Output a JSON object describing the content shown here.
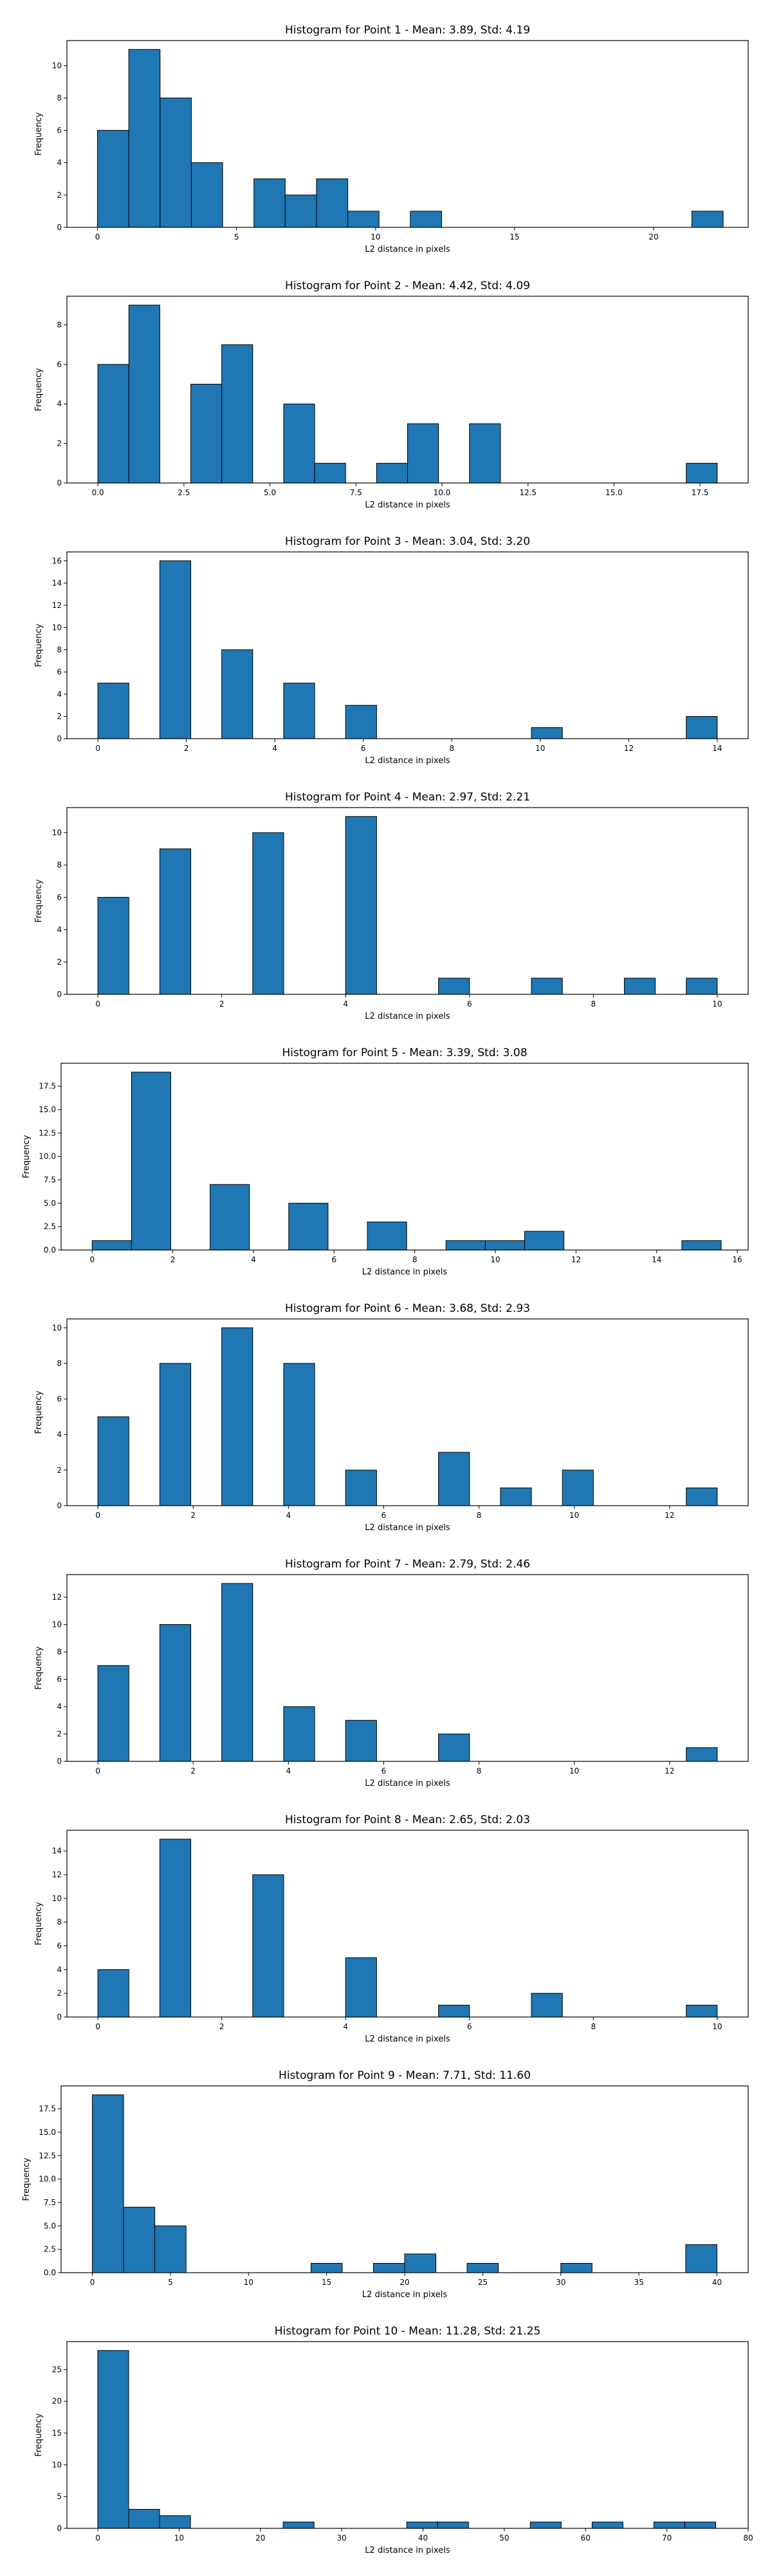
{
  "chart_data": [
    {
      "type": "bar",
      "title": "Histogram for Point 1 - Mean: 3.89, Std: 4.19",
      "xlabel": "L2 distance in pixels",
      "ylabel": "Frequency",
      "xlim": [
        -1.1,
        23.4
      ],
      "ylim": [
        0,
        11.55
      ],
      "xticks": [
        0,
        5,
        10,
        15,
        20
      ],
      "xtick_labels": [
        "0",
        "5",
        "10",
        "15",
        "20"
      ],
      "yticks": [
        0,
        2,
        4,
        6,
        8,
        10
      ],
      "ytick_labels": [
        "0",
        "2",
        "4",
        "6",
        "8",
        "10"
      ],
      "bin_edges": [
        0,
        1.125,
        2.25,
        3.375,
        4.5,
        5.625,
        6.75,
        7.875,
        9,
        10.125,
        11.25,
        12.375,
        13.5,
        14.625,
        15.75,
        16.875,
        18,
        19.125,
        20.25,
        21.375,
        22.5
      ],
      "values": [
        6,
        11,
        8,
        4,
        0,
        3,
        2,
        3,
        1,
        0,
        1,
        0,
        0,
        0,
        0,
        0,
        0,
        0,
        0,
        1
      ]
    },
    {
      "type": "bar",
      "title": "Histogram for Point 2 - Mean: 4.42, Std: 4.09",
      "xlabel": "L2 distance in pixels",
      "ylabel": "Frequency",
      "xlim": [
        -0.9,
        18.9
      ],
      "ylim": [
        0,
        9.45
      ],
      "xticks": [
        0,
        2.5,
        5,
        7.5,
        10,
        12.5,
        15,
        17.5
      ],
      "xtick_labels": [
        "0.0",
        "2.5",
        "5.0",
        "7.5",
        "10.0",
        "12.5",
        "15.0",
        "17.5"
      ],
      "yticks": [
        0,
        2,
        4,
        6,
        8
      ],
      "ytick_labels": [
        "0",
        "2",
        "4",
        "6",
        "8"
      ],
      "bin_edges": [
        0,
        0.9,
        1.8,
        2.7,
        3.6,
        4.5,
        5.4,
        6.3,
        7.2,
        8.1,
        9,
        9.9,
        10.8,
        11.7,
        12.6,
        13.5,
        14.4,
        15.3,
        16.2,
        17.1,
        18
      ],
      "values": [
        6,
        9,
        0,
        5,
        7,
        0,
        4,
        1,
        0,
        1,
        3,
        0,
        3,
        0,
        0,
        0,
        0,
        0,
        0,
        1
      ]
    },
    {
      "type": "bar",
      "title": "Histogram for Point 3 - Mean: 3.04, Std: 3.20",
      "xlabel": "L2 distance in pixels",
      "ylabel": "Frequency",
      "xlim": [
        -0.7,
        14.7
      ],
      "ylim": [
        0,
        16.8
      ],
      "xticks": [
        0,
        2,
        4,
        6,
        8,
        10,
        12,
        14
      ],
      "xtick_labels": [
        "0",
        "2",
        "4",
        "6",
        "8",
        "10",
        "12",
        "14"
      ],
      "yticks": [
        0,
        2,
        4,
        6,
        8,
        10,
        12,
        14,
        16
      ],
      "ytick_labels": [
        "0",
        "2",
        "4",
        "6",
        "8",
        "10",
        "12",
        "14",
        "16"
      ],
      "bin_edges": [
        0,
        0.7,
        1.4,
        2.1,
        2.8,
        3.5,
        4.2,
        4.9,
        5.6,
        6.3,
        7,
        7.7,
        8.4,
        9.1,
        9.8,
        10.5,
        11.2,
        11.9,
        12.6,
        13.3,
        14
      ],
      "values": [
        5,
        0,
        16,
        0,
        8,
        0,
        5,
        0,
        3,
        0,
        0,
        0,
        0,
        0,
        1,
        0,
        0,
        0,
        0,
        2
      ]
    },
    {
      "type": "bar",
      "title": "Histogram for Point 4 - Mean: 2.97, Std: 2.21",
      "xlabel": "L2 distance in pixels",
      "ylabel": "Frequency",
      "xlim": [
        -0.5,
        10.5
      ],
      "ylim": [
        0,
        11.55
      ],
      "xticks": [
        0,
        2,
        4,
        6,
        8,
        10
      ],
      "xtick_labels": [
        "0",
        "2",
        "4",
        "6",
        "8",
        "10"
      ],
      "yticks": [
        0,
        2,
        4,
        6,
        8,
        10
      ],
      "ytick_labels": [
        "0",
        "2",
        "4",
        "6",
        "8",
        "10"
      ],
      "bin_edges": [
        0,
        0.5,
        1,
        1.5,
        2,
        2.5,
        3,
        3.5,
        4,
        4.5,
        5,
        5.5,
        6,
        6.5,
        7,
        7.5,
        8,
        8.5,
        9,
        9.5,
        10
      ],
      "values": [
        6,
        0,
        9,
        0,
        0,
        10,
        0,
        0,
        11,
        0,
        0,
        1,
        0,
        0,
        1,
        0,
        0,
        1,
        0,
        1
      ]
    },
    {
      "type": "bar",
      "title": "Histogram for Point 5 - Mean: 3.39, Std: 3.08",
      "xlabel": "L2 distance in pixels",
      "ylabel": "Frequency",
      "xlim": [
        -0.77,
        16.27
      ],
      "ylim": [
        0,
        19.95
      ],
      "xticks": [
        0,
        2,
        4,
        6,
        8,
        10,
        12,
        14,
        16
      ],
      "xtick_labels": [
        "0",
        "2",
        "4",
        "6",
        "8",
        "10",
        "12",
        "14",
        "16"
      ],
      "yticks": [
        0,
        2.5,
        5,
        7.5,
        10,
        12.5,
        15,
        17.5
      ],
      "ytick_labels": [
        "0.0",
        "2.5",
        "5.0",
        "7.5",
        "10.0",
        "12.5",
        "15.0",
        "17.5"
      ],
      "bin_edges": [
        0,
        0.975,
        1.95,
        2.925,
        3.9,
        4.875,
        5.85,
        6.825,
        7.8,
        8.775,
        9.75,
        10.725,
        11.7,
        12.675,
        13.65,
        14.625,
        15.6
      ],
      "values": [
        1,
        19,
        0,
        7,
        0,
        5,
        0,
        3,
        0,
        1,
        1,
        2,
        0,
        0,
        0,
        1
      ]
    },
    {
      "type": "bar",
      "title": "Histogram for Point 6 - Mean: 3.68, Std: 2.93",
      "xlabel": "L2 distance in pixels",
      "ylabel": "Frequency",
      "xlim": [
        -0.65,
        13.65
      ],
      "ylim": [
        0,
        10.5
      ],
      "xticks": [
        0,
        2,
        4,
        6,
        8,
        10,
        12
      ],
      "xtick_labels": [
        "0",
        "2",
        "4",
        "6",
        "8",
        "10",
        "12"
      ],
      "yticks": [
        0,
        2,
        4,
        6,
        8,
        10
      ],
      "ytick_labels": [
        "0",
        "2",
        "4",
        "6",
        "8",
        "10"
      ],
      "bin_edges": [
        0,
        0.65,
        1.3,
        1.95,
        2.6,
        3.25,
        3.9,
        4.55,
        5.2,
        5.85,
        6.5,
        7.15,
        7.8,
        8.45,
        9.1,
        9.75,
        10.4,
        11.05,
        11.7,
        12.35,
        13
      ],
      "values": [
        5,
        0,
        8,
        0,
        10,
        0,
        8,
        0,
        2,
        0,
        0,
        3,
        0,
        1,
        0,
        2,
        0,
        0,
        0,
        1
      ]
    },
    {
      "type": "bar",
      "title": "Histogram for Point 7 - Mean: 2.79, Std: 2.46",
      "xlabel": "L2 distance in pixels",
      "ylabel": "Frequency",
      "xlim": [
        -0.65,
        13.65
      ],
      "ylim": [
        0,
        13.65
      ],
      "xticks": [
        0,
        2,
        4,
        6,
        8,
        10,
        12
      ],
      "xtick_labels": [
        "0",
        "2",
        "4",
        "6",
        "8",
        "10",
        "12"
      ],
      "yticks": [
        0,
        2,
        4,
        6,
        8,
        10,
        12
      ],
      "ytick_labels": [
        "0",
        "2",
        "4",
        "6",
        "8",
        "10",
        "12"
      ],
      "bin_edges": [
        0,
        0.65,
        1.3,
        1.95,
        2.6,
        3.25,
        3.9,
        4.55,
        5.2,
        5.85,
        6.5,
        7.15,
        7.8,
        8.45,
        9.1,
        9.75,
        10.4,
        11.05,
        11.7,
        12.35,
        13
      ],
      "values": [
        7,
        0,
        10,
        0,
        13,
        0,
        4,
        0,
        3,
        0,
        0,
        2,
        0,
        0,
        0,
        0,
        0,
        0,
        0,
        1
      ]
    },
    {
      "type": "bar",
      "title": "Histogram for Point 8 - Mean: 2.65, Std: 2.03",
      "xlabel": "L2 distance in pixels",
      "ylabel": "Frequency",
      "xlim": [
        -0.5,
        10.5
      ],
      "ylim": [
        0,
        15.75
      ],
      "xticks": [
        0,
        2,
        4,
        6,
        8,
        10
      ],
      "xtick_labels": [
        "0",
        "2",
        "4",
        "6",
        "8",
        "10"
      ],
      "yticks": [
        0,
        2,
        4,
        6,
        8,
        10,
        12,
        14
      ],
      "ytick_labels": [
        "0",
        "2",
        "4",
        "6",
        "8",
        "10",
        "12",
        "14"
      ],
      "bin_edges": [
        0,
        0.5,
        1,
        1.5,
        2,
        2.5,
        3,
        3.5,
        4,
        4.5,
        5,
        5.5,
        6,
        6.5,
        7,
        7.5,
        8,
        8.5,
        9,
        9.5,
        10
      ],
      "values": [
        4,
        0,
        15,
        0,
        0,
        12,
        0,
        0,
        5,
        0,
        0,
        1,
        0,
        0,
        2,
        0,
        0,
        0,
        0,
        1
      ]
    },
    {
      "type": "bar",
      "title": "Histogram for Point 9 - Mean: 7.71, Std: 11.60",
      "xlabel": "L2 distance in pixels",
      "ylabel": "Frequency",
      "xlim": [
        -2,
        42
      ],
      "ylim": [
        0,
        19.95
      ],
      "xticks": [
        0,
        5,
        10,
        15,
        20,
        25,
        30,
        35,
        40
      ],
      "xtick_labels": [
        "0",
        "5",
        "10",
        "15",
        "20",
        "25",
        "30",
        "35",
        "40"
      ],
      "yticks": [
        0,
        2.5,
        5,
        7.5,
        10,
        12.5,
        15,
        17.5
      ],
      "ytick_labels": [
        "0.0",
        "2.5",
        "5.0",
        "7.5",
        "10.0",
        "12.5",
        "15.0",
        "17.5"
      ],
      "bin_edges": [
        0,
        2,
        4,
        6,
        8,
        10,
        12,
        14,
        16,
        18,
        20,
        22,
        24,
        26,
        28,
        30,
        32,
        34,
        36,
        38,
        40
      ],
      "values": [
        19,
        7,
        5,
        0,
        0,
        0,
        0,
        1,
        0,
        1,
        2,
        0,
        1,
        0,
        0,
        1,
        0,
        0,
        0,
        3
      ]
    },
    {
      "type": "bar",
      "title": "Histogram for Point 10 - Mean: 11.28, Std: 21.25",
      "xlabel": "L2 distance in pixels",
      "ylabel": "Frequency",
      "xlim": [
        -3.8,
        80
      ],
      "ylim": [
        0,
        29.4
      ],
      "xticks": [
        0,
        10,
        20,
        30,
        40,
        50,
        60,
        70,
        80
      ],
      "xtick_labels": [
        "0",
        "10",
        "20",
        "30",
        "40",
        "50",
        "60",
        "70",
        "80"
      ],
      "yticks": [
        0,
        5,
        10,
        15,
        20,
        25
      ],
      "ytick_labels": [
        "0",
        "5",
        "10",
        "15",
        "20",
        "25"
      ],
      "bin_edges": [
        0,
        3.8,
        7.6,
        11.4,
        15.2,
        19,
        22.8,
        26.6,
        30.4,
        34.2,
        38,
        41.8,
        45.6,
        49.4,
        53.2,
        57,
        60.8,
        64.6,
        68.4,
        72.2,
        76
      ],
      "values": [
        28,
        3,
        2,
        0,
        0,
        0,
        1,
        0,
        0,
        0,
        1,
        1,
        0,
        0,
        1,
        0,
        1,
        0,
        1,
        1
      ]
    }
  ],
  "style": {
    "bar_color": "#1f77b4",
    "edge_color": "#000000"
  }
}
